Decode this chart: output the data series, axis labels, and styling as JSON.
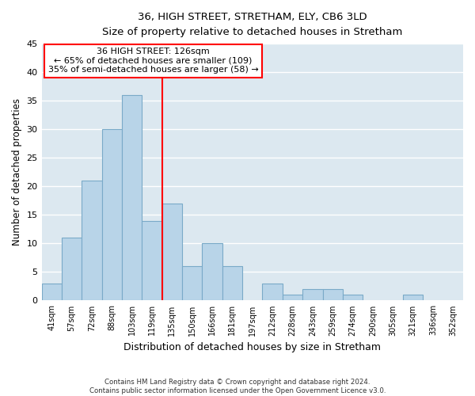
{
  "title": "36, HIGH STREET, STRETHAM, ELY, CB6 3LD",
  "subtitle": "Size of property relative to detached houses in Stretham",
  "xlabel": "Distribution of detached houses by size in Stretham",
  "ylabel": "Number of detached properties",
  "bin_labels": [
    "41sqm",
    "57sqm",
    "72sqm",
    "88sqm",
    "103sqm",
    "119sqm",
    "135sqm",
    "150sqm",
    "166sqm",
    "181sqm",
    "197sqm",
    "212sqm",
    "228sqm",
    "243sqm",
    "259sqm",
    "274sqm",
    "290sqm",
    "305sqm",
    "321sqm",
    "336sqm",
    "352sqm"
  ],
  "bar_values": [
    3,
    11,
    21,
    30,
    36,
    14,
    17,
    6,
    10,
    6,
    0,
    3,
    1,
    2,
    2,
    1,
    0,
    0,
    1,
    0,
    0
  ],
  "bar_color": "#b8d4e8",
  "bar_edge_color": "#7aaac8",
  "vline_x": 5.5,
  "vline_color": "red",
  "annotation_title": "36 HIGH STREET: 126sqm",
  "annotation_line1": "← 65% of detached houses are smaller (109)",
  "annotation_line2": "35% of semi-detached houses are larger (58) →",
  "annotation_box_color": "white",
  "annotation_box_edge": "red",
  "ylim": [
    0,
    45
  ],
  "yticks": [
    0,
    5,
    10,
    15,
    20,
    25,
    30,
    35,
    40,
    45
  ],
  "footer_line1": "Contains HM Land Registry data © Crown copyright and database right 2024.",
  "footer_line2": "Contains public sector information licensed under the Open Government Licence v3.0.",
  "bg_color": "#dce8f0"
}
